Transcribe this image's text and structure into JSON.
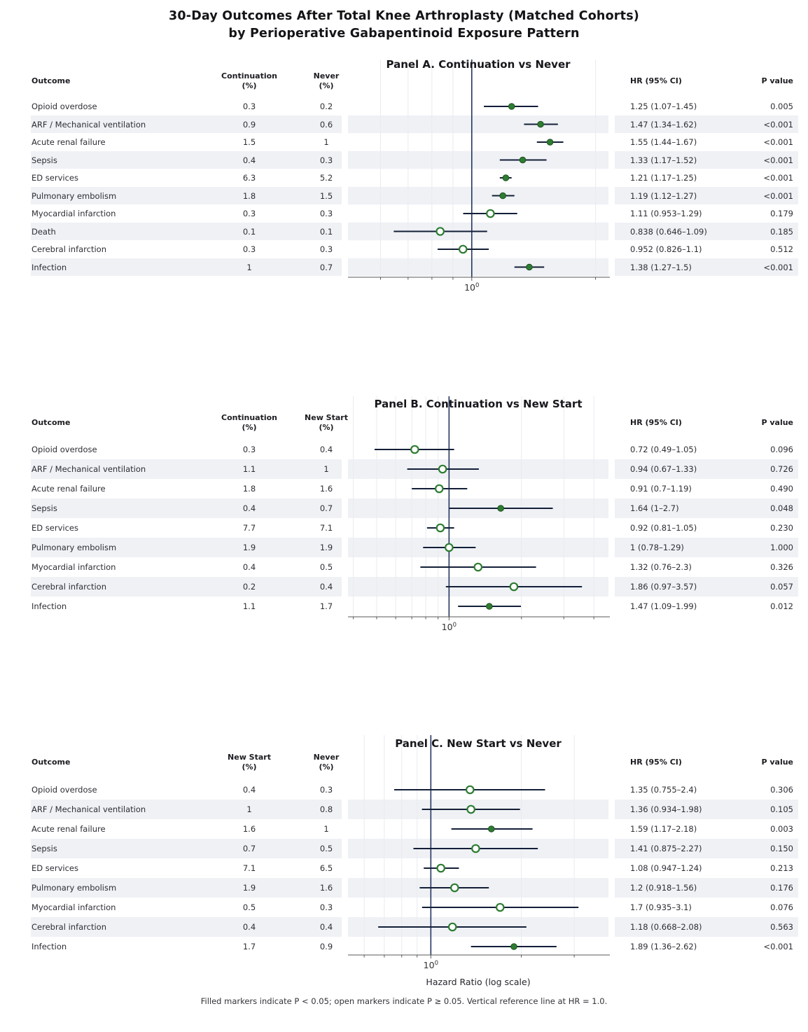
{
  "title": {
    "line1": "30-Day Outcomes After Total Knee Arthroplasty (Matched Cohorts)",
    "line2": "by Perioperative Gabapentinoid Exposure Pattern"
  },
  "footer": {
    "xlabel": "Hazard Ratio (log scale)",
    "note": "Filled markers indicate P < 0.05; open markers indicate P ≥ 0.05. Vertical reference line at HR = 1.0."
  },
  "colors": {
    "marker_green": "#2e7d32",
    "marker_green_edge": "#1c501f",
    "ci_line": "#131f38",
    "reference_line": "#25355f",
    "stripe": "#eff1f5",
    "gridline": "#e9ebf0",
    "axis": "#5a5a5a",
    "tick_text": "#333333"
  },
  "chart_data": [
    {
      "type": "forest",
      "panel": "A",
      "title": "Panel A. Continuation vs Never",
      "columns": {
        "outcome": "Outcome",
        "rate1": [
          "Continuation",
          "(%)"
        ],
        "rate2": [
          "Never",
          "(%)"
        ],
        "hr": "HR (95% CI)",
        "p": "P value"
      },
      "xlim": [
        0.5,
        2.15
      ],
      "x_tick": {
        "base": "10",
        "exp": "0",
        "value": 1
      },
      "rows": [
        {
          "outcome": "Opioid overdose",
          "rate1": "0.3",
          "rate2": "0.2",
          "hr": 1.25,
          "lo": 1.07,
          "hi": 1.45,
          "hr_text": "1.25 (1.07–1.45)",
          "p": "0.005",
          "filled": true
        },
        {
          "outcome": "ARF / Mechanical ventilation",
          "rate1": "0.9",
          "rate2": "0.6",
          "hr": 1.47,
          "lo": 1.34,
          "hi": 1.62,
          "hr_text": "1.47 (1.34–1.62)",
          "p": "<0.001",
          "filled": true
        },
        {
          "outcome": "Acute renal failure",
          "rate1": "1.5",
          "rate2": "1",
          "hr": 1.55,
          "lo": 1.44,
          "hi": 1.67,
          "hr_text": "1.55 (1.44–1.67)",
          "p": "<0.001",
          "filled": true
        },
        {
          "outcome": "Sepsis",
          "rate1": "0.4",
          "rate2": "0.3",
          "hr": 1.33,
          "lo": 1.17,
          "hi": 1.52,
          "hr_text": "1.33 (1.17–1.52)",
          "p": "<0.001",
          "filled": true
        },
        {
          "outcome": "ED services",
          "rate1": "6.3",
          "rate2": "5.2",
          "hr": 1.21,
          "lo": 1.17,
          "hi": 1.25,
          "hr_text": "1.21 (1.17–1.25)",
          "p": "<0.001",
          "filled": true
        },
        {
          "outcome": "Pulmonary embolism",
          "rate1": "1.8",
          "rate2": "1.5",
          "hr": 1.19,
          "lo": 1.12,
          "hi": 1.27,
          "hr_text": "1.19 (1.12–1.27)",
          "p": "<0.001",
          "filled": true
        },
        {
          "outcome": "Myocardial infarction",
          "rate1": "0.3",
          "rate2": "0.3",
          "hr": 1.11,
          "lo": 0.953,
          "hi": 1.29,
          "hr_text": "1.11 (0.953–1.29)",
          "p": "0.179",
          "filled": false
        },
        {
          "outcome": "Death",
          "rate1": "0.1",
          "rate2": "0.1",
          "hr": 0.838,
          "lo": 0.646,
          "hi": 1.09,
          "hr_text": "0.838 (0.646–1.09)",
          "p": "0.185",
          "filled": false
        },
        {
          "outcome": "Cerebral infarction",
          "rate1": "0.3",
          "rate2": "0.3",
          "hr": 0.952,
          "lo": 0.826,
          "hi": 1.1,
          "hr_text": "0.952 (0.826–1.1)",
          "p": "0.512",
          "filled": false
        },
        {
          "outcome": "Infection",
          "rate1": "1",
          "rate2": "0.7",
          "hr": 1.38,
          "lo": 1.27,
          "hi": 1.5,
          "hr_text": "1.38 (1.27–1.5)",
          "p": "<0.001",
          "filled": true
        }
      ]
    },
    {
      "type": "forest",
      "panel": "B",
      "title": "Panel B. Continuation vs New Start",
      "columns": {
        "outcome": "Outcome",
        "rate1": [
          "Continuation",
          "(%)"
        ],
        "rate2": [
          "New Start",
          "(%)"
        ],
        "hr": "HR (95% CI)",
        "p": "P value"
      },
      "xlim": [
        0.38,
        4.6
      ],
      "x_tick": {
        "base": "10",
        "exp": "0",
        "value": 1
      },
      "rows": [
        {
          "outcome": "Opioid overdose",
          "rate1": "0.3",
          "rate2": "0.4",
          "hr": 0.72,
          "lo": 0.49,
          "hi": 1.05,
          "hr_text": "0.72 (0.49–1.05)",
          "p": "0.096",
          "filled": false
        },
        {
          "outcome": "ARF / Mechanical ventilation",
          "rate1": "1.1",
          "rate2": "1",
          "hr": 0.94,
          "lo": 0.67,
          "hi": 1.33,
          "hr_text": "0.94 (0.67–1.33)",
          "p": "0.726",
          "filled": false
        },
        {
          "outcome": "Acute renal failure",
          "rate1": "1.8",
          "rate2": "1.6",
          "hr": 0.91,
          "lo": 0.7,
          "hi": 1.19,
          "hr_text": "0.91 (0.7–1.19)",
          "p": "0.490",
          "filled": false
        },
        {
          "outcome": "Sepsis",
          "rate1": "0.4",
          "rate2": "0.7",
          "hr": 1.64,
          "lo": 1.0,
          "hi": 2.7,
          "hr_text": "1.64 (1–2.7)",
          "p": "0.048",
          "filled": true
        },
        {
          "outcome": "ED services",
          "rate1": "7.7",
          "rate2": "7.1",
          "hr": 0.92,
          "lo": 0.81,
          "hi": 1.05,
          "hr_text": "0.92 (0.81–1.05)",
          "p": "0.230",
          "filled": false
        },
        {
          "outcome": "Pulmonary embolism",
          "rate1": "1.9",
          "rate2": "1.9",
          "hr": 1.0,
          "lo": 0.78,
          "hi": 1.29,
          "hr_text": "1 (0.78–1.29)",
          "p": "1.000",
          "filled": false
        },
        {
          "outcome": "Myocardial infarction",
          "rate1": "0.4",
          "rate2": "0.5",
          "hr": 1.32,
          "lo": 0.76,
          "hi": 2.3,
          "hr_text": "1.32 (0.76–2.3)",
          "p": "0.326",
          "filled": false
        },
        {
          "outcome": "Cerebral infarction",
          "rate1": "0.2",
          "rate2": "0.4",
          "hr": 1.86,
          "lo": 0.97,
          "hi": 3.57,
          "hr_text": "1.86 (0.97–3.57)",
          "p": "0.057",
          "filled": false
        },
        {
          "outcome": "Infection",
          "rate1": "1.1",
          "rate2": "1.7",
          "hr": 1.47,
          "lo": 1.09,
          "hi": 1.99,
          "hr_text": "1.47 (1.09–1.99)",
          "p": "0.012",
          "filled": true
        }
      ]
    },
    {
      "type": "forest",
      "panel": "C",
      "title": "Panel C. New Start vs Never",
      "columns": {
        "outcome": "Outcome",
        "rate1": [
          "New Start",
          "(%)"
        ],
        "rate2": [
          "Never",
          "(%)"
        ],
        "hr": "HR (95% CI)",
        "p": "P value"
      },
      "xlim": [
        0.53,
        3.9
      ],
      "x_tick": {
        "base": "10",
        "exp": "0",
        "value": 1
      },
      "rows": [
        {
          "outcome": "Opioid overdose",
          "rate1": "0.4",
          "rate2": "0.3",
          "hr": 1.35,
          "lo": 0.755,
          "hi": 2.4,
          "hr_text": "1.35 (0.755–2.4)",
          "p": "0.306",
          "filled": false
        },
        {
          "outcome": "ARF / Mechanical ventilation",
          "rate1": "1",
          "rate2": "0.8",
          "hr": 1.36,
          "lo": 0.934,
          "hi": 1.98,
          "hr_text": "1.36 (0.934–1.98)",
          "p": "0.105",
          "filled": false
        },
        {
          "outcome": "Acute renal failure",
          "rate1": "1.6",
          "rate2": "1",
          "hr": 1.59,
          "lo": 1.17,
          "hi": 2.18,
          "hr_text": "1.59 (1.17–2.18)",
          "p": "0.003",
          "filled": true
        },
        {
          "outcome": "Sepsis",
          "rate1": "0.7",
          "rate2": "0.5",
          "hr": 1.41,
          "lo": 0.875,
          "hi": 2.27,
          "hr_text": "1.41 (0.875–2.27)",
          "p": "0.150",
          "filled": false
        },
        {
          "outcome": "ED services",
          "rate1": "7.1",
          "rate2": "6.5",
          "hr": 1.08,
          "lo": 0.947,
          "hi": 1.24,
          "hr_text": "1.08 (0.947–1.24)",
          "p": "0.213",
          "filled": false
        },
        {
          "outcome": "Pulmonary embolism",
          "rate1": "1.9",
          "rate2": "1.6",
          "hr": 1.2,
          "lo": 0.918,
          "hi": 1.56,
          "hr_text": "1.2 (0.918–1.56)",
          "p": "0.176",
          "filled": false
        },
        {
          "outcome": "Myocardial infarction",
          "rate1": "0.5",
          "rate2": "0.3",
          "hr": 1.7,
          "lo": 0.935,
          "hi": 3.1,
          "hr_text": "1.7 (0.935–3.1)",
          "p": "0.076",
          "filled": false
        },
        {
          "outcome": "Cerebral infarction",
          "rate1": "0.4",
          "rate2": "0.4",
          "hr": 1.18,
          "lo": 0.668,
          "hi": 2.08,
          "hr_text": "1.18 (0.668–2.08)",
          "p": "0.563",
          "filled": false
        },
        {
          "outcome": "Infection",
          "rate1": "1.7",
          "rate2": "0.9",
          "hr": 1.89,
          "lo": 1.36,
          "hi": 2.62,
          "hr_text": "1.89 (1.36–2.62)",
          "p": "<0.001",
          "filled": true
        }
      ]
    }
  ]
}
